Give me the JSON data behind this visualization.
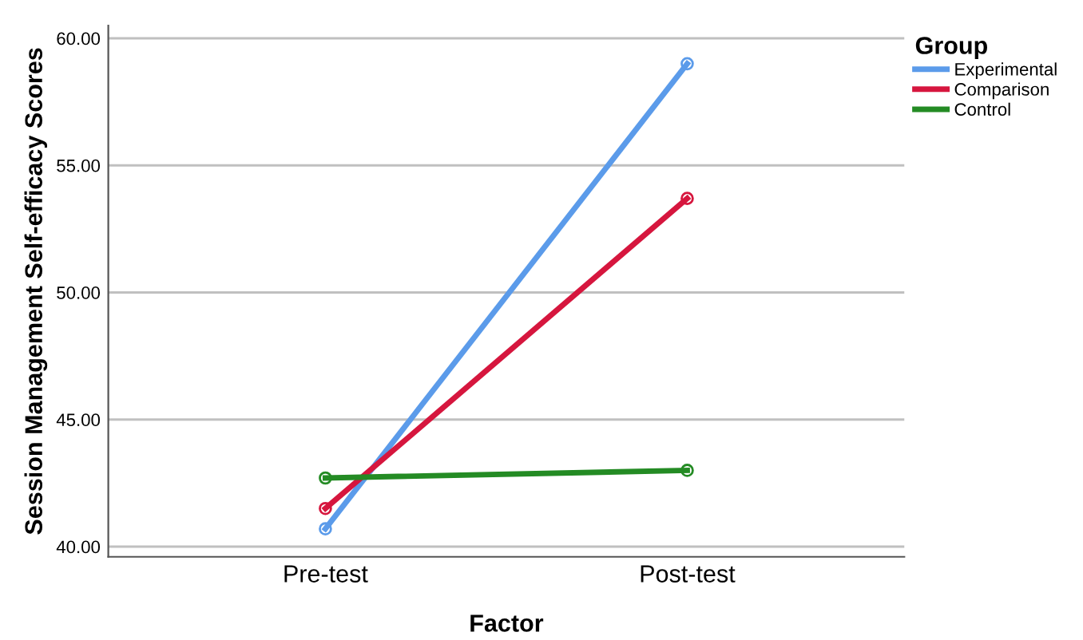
{
  "chart_data": {
    "type": "line",
    "xlabel": "Factor",
    "ylabel": "Session Management Self-efficacy Scores",
    "legend_title": "Group",
    "categories": [
      "Pre-test",
      "Post-test"
    ],
    "series": [
      {
        "name": "Experimental",
        "color": "#5b9bea",
        "values": [
          40.7,
          59.0
        ]
      },
      {
        "name": "Comparison",
        "color": "#d6163e",
        "values": [
          41.5,
          53.7
        ]
      },
      {
        "name": "Control",
        "color": "#248b24",
        "values": [
          42.7,
          43.0
        ]
      }
    ],
    "ylim": [
      39.6,
      60.5
    ],
    "yticks": [
      {
        "value": 40,
        "label": "40.00"
      },
      {
        "value": 45,
        "label": "45.00"
      },
      {
        "value": 50,
        "label": "50.00"
      },
      {
        "value": 55,
        "label": "55.00"
      },
      {
        "value": 60,
        "label": "60.00"
      }
    ],
    "grid": "y",
    "legend": "top right",
    "marker": "circle",
    "line_style": "solid"
  }
}
